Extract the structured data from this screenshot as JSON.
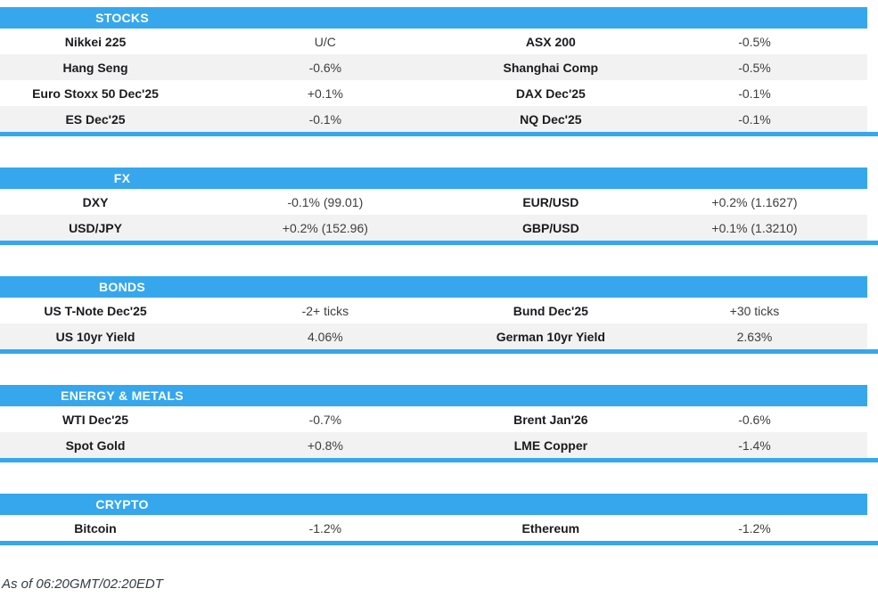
{
  "theme": {
    "accent": "#36a7ec",
    "alt_row_bg": "#f2f2f2",
    "label_color": "#1b1b1f",
    "value_color": "#3d3d3d"
  },
  "sections": [
    {
      "title": "STOCKS",
      "rows": [
        {
          "l1": "Nikkei 225",
          "v1": "U/C",
          "l2": "ASX 200",
          "v2": "-0.5%"
        },
        {
          "l1": "Hang Seng",
          "v1": "-0.6%",
          "l2": "Shanghai Comp",
          "v2": "-0.5%"
        },
        {
          "l1": "Euro Stoxx 50 Dec'25",
          "v1": "+0.1%",
          "l2": "DAX Dec'25",
          "v2": "-0.1%"
        },
        {
          "l1": "ES Dec'25",
          "v1": "-0.1%",
          "l2": "NQ Dec'25",
          "v2": "-0.1%"
        }
      ]
    },
    {
      "title": "FX",
      "rows": [
        {
          "l1": "DXY",
          "v1": "-0.1% (99.01)",
          "l2": "EUR/USD",
          "v2": "+0.2% (1.1627)"
        },
        {
          "l1": "USD/JPY",
          "v1": "+0.2% (152.96)",
          "l2": "GBP/USD",
          "v2": "+0.1% (1.3210)"
        }
      ]
    },
    {
      "title": "BONDS",
      "rows": [
        {
          "l1": "US T-Note Dec'25",
          "v1": "-2+ ticks",
          "l2": "Bund Dec'25",
          "v2": "+30 ticks"
        },
        {
          "l1": "US 10yr Yield",
          "v1": "4.06%",
          "l2": "German 10yr Yield",
          "v2": "2.63%"
        }
      ]
    },
    {
      "title": "ENERGY & METALS",
      "rows": [
        {
          "l1": "WTI Dec'25",
          "v1": "-0.7%",
          "l2": "Brent Jan'26",
          "v2": "-0.6%"
        },
        {
          "l1": "Spot Gold",
          "v1": "+0.8%",
          "l2": "LME Copper",
          "v2": "-1.4%"
        }
      ]
    },
    {
      "title": "CRYPTO",
      "rows": [
        {
          "l1": "Bitcoin",
          "v1": "-1.2%",
          "l2": "Ethereum",
          "v2": "-1.2%"
        }
      ]
    }
  ],
  "footer": {
    "as_of": "As of 06:20GMT/02:20EDT"
  }
}
